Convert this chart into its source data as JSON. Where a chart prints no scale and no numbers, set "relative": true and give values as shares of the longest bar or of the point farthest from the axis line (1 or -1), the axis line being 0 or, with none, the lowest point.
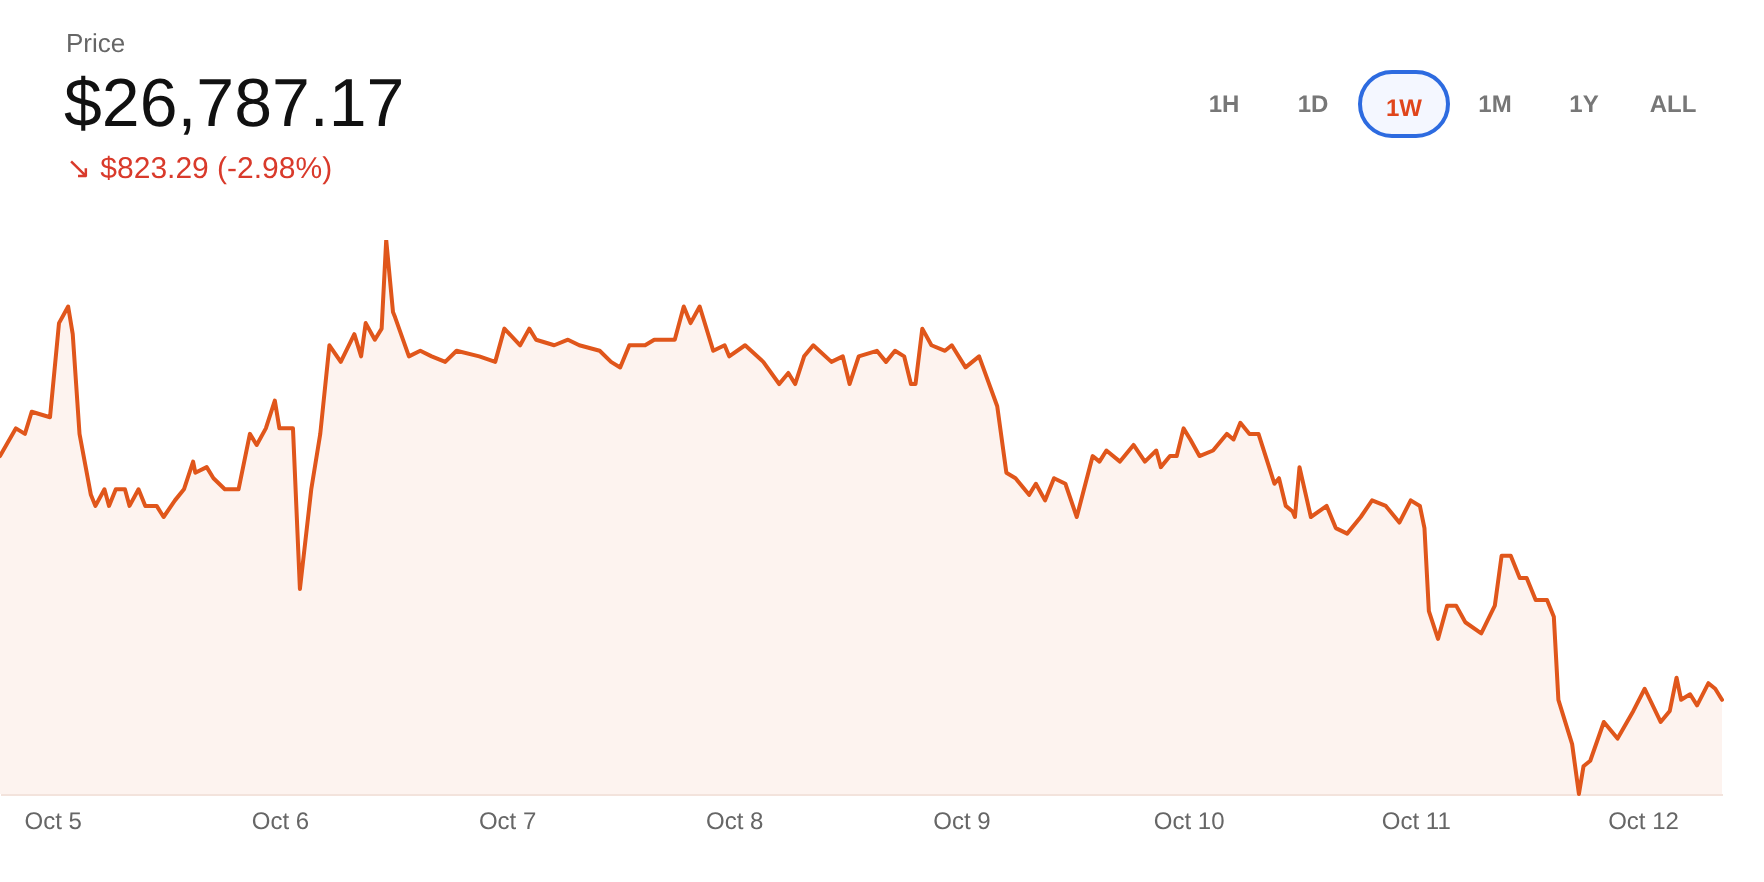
{
  "chart_data": {
    "type": "line",
    "title": "Price",
    "subtitle": "$26,787.17",
    "relative": true,
    "annotations": [
      "↘ $823.29 (-2.98%)",
      "1H",
      "1D",
      "1W",
      "1M",
      "1Y",
      "ALL"
    ],
    "xlim": [
      "--10-04T18:29",
      "--10-12T08:24"
    ],
    "xticks": [
      {
        "value": "--10-05",
        "label": "Oct 5"
      },
      {
        "value": "--10-06",
        "label": "Oct 6"
      },
      {
        "value": "--10-07",
        "label": "Oct 7"
      },
      {
        "value": "--10-08",
        "label": "Oct 8"
      },
      {
        "value": "--10-09",
        "label": "Oct 9"
      },
      {
        "value": "--10-10",
        "label": "Oct 10"
      },
      {
        "value": "--10-11",
        "label": "Oct 11"
      },
      {
        "value": "--10-12",
        "label": "Oct 12"
      }
    ],
    "series": [
      {
        "color": "#e0561b",
        "x": [
          "--10-04T18:29",
          "--10-04T20:10",
          "--10-04T21:07",
          "--10-04T21:50",
          "--10-04T23:46",
          "--10-05T00:43",
          "--10-05T01:41",
          "--10-05T02:10",
          "--10-05T02:53",
          "--10-05T04:05",
          "--10-05T04:34",
          "--10-05T05:31",
          "--10-05T06:00",
          "--10-05T06:43",
          "--10-05T07:41",
          "--10-05T08:10",
          "--10-05T09:07",
          "--10-05T09:50",
          "--10-05T11:02",
          "--10-05T11:46",
          "--10-05T12:58",
          "--10-05T13:55",
          "--10-05T14:53",
          "--10-05T15:07",
          "--10-05T16:19",
          "--10-05T17:02",
          "--10-05T18:14",
          "--10-05T18:43",
          "--10-05T19:41",
          "--10-05T20:53",
          "--10-05T21:36",
          "--10-05T22:34",
          "--10-05T23:31",
          "--10-06T00:00",
          "--10-06T01:26",
          "--10-06T02:10",
          "--10-06T03:22",
          "--10-06T04:19",
          "--10-06T05:17",
          "--10-06T06:29",
          "--10-06T07:55",
          "--10-06T08:38",
          "--10-06T09:07",
          "--10-06T10:05",
          "--10-06T10:48",
          "--10-06T11:17",
          "--10-06T12:00",
          "--10-06T12:14",
          "--10-06T13:41",
          "--10-06T14:53",
          "--10-06T16:05",
          "--10-06T17:31",
          "--10-06T18:43",
          "--10-06T21:07",
          "--10-06T22:48",
          "--10-06T23:46",
          "--10-07T01:26",
          "--10-07T02:24",
          "--10-07T03:07",
          "--10-07T05:02",
          "--10-07T06:29",
          "--10-07T07:41",
          "--10-07T09:50",
          "--10-07T11:02",
          "--10-07T12:00",
          "--10-07T12:58",
          "--10-07T14:38",
          "--10-07T15:36",
          "--10-07T17:46",
          "--10-07T18:43",
          "--10-07T19:26",
          "--10-07T20:24",
          "--10-07T21:50",
          "--10-07T23:02",
          "--10-07T23:31",
          "--10-08T01:12",
          "--10-08T03:07",
          "--10-08T04:48",
          "--10-08T05:46",
          "--10-08T06:29",
          "--10-08T07:26",
          "--10-08T08:24",
          "--10-08T10:19",
          "--10-08T11:31",
          "--10-08T12:14",
          "--10-08T13:12",
          "--10-08T15:07",
          "--10-08T16:05",
          "--10-08T17:02",
          "--10-08T18:00",
          "--10-08T18:43",
          "--10-08T19:12",
          "--10-08T19:55",
          "--10-08T20:53",
          "--10-08T22:19",
          "--10-08T23:02",
          "--10-09T00:29",
          "--10-09T01:55",
          "--10-09T03:50",
          "--10-09T04:48",
          "--10-09T05:46",
          "--10-09T07:12",
          "--10-09T07:55",
          "--10-09T08:53",
          "--10-09T09:50",
          "--10-09T11:02",
          "--10-09T12:14",
          "--10-09T13:55",
          "--10-09T14:38",
          "--10-09T15:22",
          "--10-09T16:48",
          "--10-09T18:14",
          "--10-09T19:26",
          "--10-09T20:38",
          "--10-09T21:07",
          "--10-09T22:05",
          "--10-09T22:48",
          "--10-09T23:31",
          "--10-10T00:14",
          "--10-10T01:12",
          "--10-10T02:38",
          "--10-10T04:05",
          "--10-10T04:48",
          "--10-10T05:31",
          "--10-10T06:29",
          "--10-10T07:26",
          "--10-10T09:07",
          "--10-10T09:36",
          "--10-10T10:19",
          "--10-10T11:02",
          "--10-10T11:17",
          "--10-10T11:46",
          "--10-10T12:58",
          "--10-10T14:38",
          "--10-10T15:36",
          "--10-10T16:48",
          "--10-10T18:14",
          "--10-10T19:26",
          "--10-10T20:53",
          "--10-10T22:19",
          "--10-10T23:31",
          "--10-11T00:29",
          "--10-11T00:58",
          "--10-11T01:26",
          "--10-11T02:24",
          "--10-11T03:22",
          "--10-11T04:19",
          "--10-11T05:17",
          "--10-11T06:58",
          "--10-11T08:24",
          "--10-11T09:07",
          "--10-11T10:05",
          "--10-11T11:02",
          "--10-11T11:46",
          "--10-11T12:43",
          "--10-11T13:55",
          "--10-11T14:38",
          "--10-11T15:07",
          "--10-11T16:34",
          "--10-11T17:17",
          "--10-11T17:46",
          "--10-11T18:29",
          "--10-11T19:55",
          "--10-11T21:22",
          "--10-11T23:02",
          "--10-12T00:14",
          "--10-12T01:55",
          "--10-12T02:53",
          "--10-12T03:36",
          "--10-12T04:05",
          "--10-12T05:02",
          "--10-12T05:46",
          "--10-12T06:58",
          "--10-12T07:41",
          "--10-12T08:24"
        ],
        "values": [
          0.61,
          0.66,
          0.65,
          0.69,
          0.68,
          0.85,
          0.88,
          0.83,
          0.65,
          0.54,
          0.52,
          0.55,
          0.52,
          0.55,
          0.55,
          0.52,
          0.55,
          0.52,
          0.52,
          0.5,
          0.53,
          0.55,
          0.6,
          0.58,
          0.59,
          0.57,
          0.55,
          0.55,
          0.55,
          0.65,
          0.63,
          0.66,
          0.71,
          0.66,
          0.66,
          0.37,
          0.55,
          0.65,
          0.81,
          0.78,
          0.83,
          0.79,
          0.85,
          0.82,
          0.84,
          1,
          0.87,
          0.86,
          0.79,
          0.8,
          0.79,
          0.78,
          0.8,
          0.79,
          0.78,
          0.84,
          0.81,
          0.84,
          0.82,
          0.81,
          0.82,
          0.81,
          0.8,
          0.78,
          0.77,
          0.81,
          0.81,
          0.82,
          0.82,
          0.88,
          0.85,
          0.88,
          0.8,
          0.81,
          0.79,
          0.81,
          0.78,
          0.74,
          0.76,
          0.74,
          0.79,
          0.81,
          0.78,
          0.79,
          0.74,
          0.79,
          0.8,
          0.78,
          0.8,
          0.79,
          0.74,
          0.74,
          0.84,
          0.81,
          0.8,
          0.81,
          0.77,
          0.79,
          0.7,
          0.58,
          0.57,
          0.54,
          0.56,
          0.53,
          0.57,
          0.56,
          0.5,
          0.61,
          0.6,
          0.62,
          0.6,
          0.63,
          0.6,
          0.62,
          0.59,
          0.61,
          0.61,
          0.66,
          0.64,
          0.61,
          0.62,
          0.65,
          0.64,
          0.67,
          0.65,
          0.65,
          0.56,
          0.57,
          0.52,
          0.51,
          0.5,
          0.59,
          0.5,
          0.52,
          0.48,
          0.47,
          0.5,
          0.53,
          0.52,
          0.49,
          0.53,
          0.52,
          0.48,
          0.33,
          0.28,
          0.34,
          0.34,
          0.31,
          0.29,
          0.34,
          0.43,
          0.43,
          0.39,
          0.39,
          0.35,
          0.35,
          0.32,
          0.17,
          0.09,
          0,
          0.05,
          0.06,
          0.13,
          0.1,
          0.15,
          0.19,
          0.13,
          0.15,
          0.21,
          0.17,
          0.18,
          0.16,
          0.2,
          0.19,
          0.17
        ]
      }
    ]
  }
}
